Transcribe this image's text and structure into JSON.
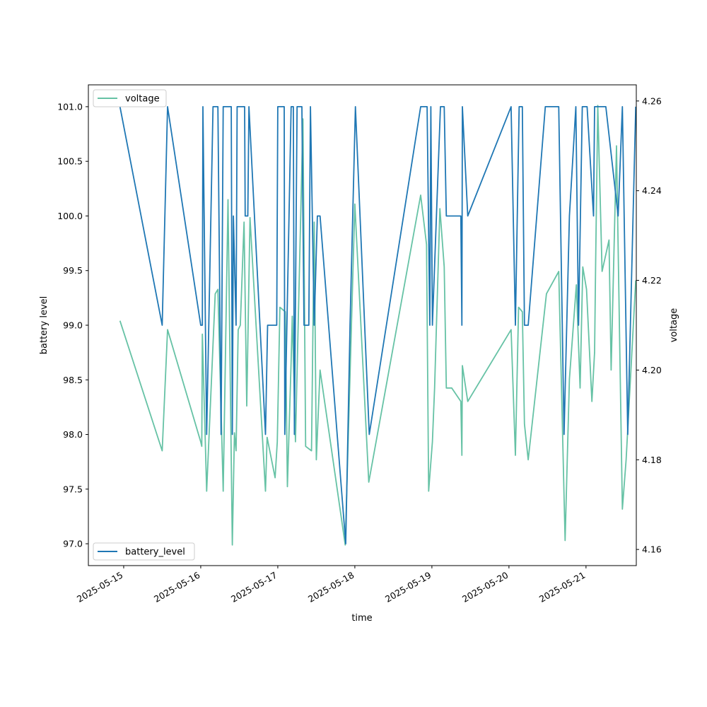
{
  "chart_data": {
    "type": "line",
    "title": "",
    "xlabel": "time",
    "ylabel_left": "battery level",
    "ylabel_right": "voltage",
    "x_ticks": [
      "2025-05-15",
      "2025-05-16",
      "2025-05-17",
      "2025-05-18",
      "2025-05-19",
      "2025-05-20",
      "2025-05-21"
    ],
    "xlim": [
      "2025-05-14T13:00",
      "2025-05-21T15:40"
    ],
    "y_left_ticks": [
      "97.0",
      "97.5",
      "98.0",
      "98.5",
      "99.0",
      "99.5",
      "100.0",
      "100.5",
      "101.0"
    ],
    "y_right_ticks": [
      "4.16",
      "4.18",
      "4.20",
      "4.22",
      "4.24",
      "4.26"
    ],
    "ylim_left": [
      96.8,
      101.2
    ],
    "ylim_right": [
      4.1564,
      4.2636
    ],
    "grid": false,
    "series": [
      {
        "name": "battery_level",
        "axis": "left",
        "color": "#1f77b4",
        "legend_position": "lower-left",
        "points": [
          [
            "2025-05-14T22:50",
            101
          ],
          [
            "2025-05-15T12:00",
            99
          ],
          [
            "2025-05-15T13:40",
            101
          ],
          [
            "2025-05-16T00:00",
            99
          ],
          [
            "2025-05-16T00:30",
            99
          ],
          [
            "2025-05-16T00:40",
            101
          ],
          [
            "2025-05-16T01:50",
            98
          ],
          [
            "2025-05-16T03:50",
            101
          ],
          [
            "2025-05-16T05:20",
            101
          ],
          [
            "2025-05-16T06:20",
            98
          ],
          [
            "2025-05-16T07:00",
            101
          ],
          [
            "2025-05-16T09:30",
            101
          ],
          [
            "2025-05-16T09:50",
            98
          ],
          [
            "2025-05-16T10:10",
            100
          ],
          [
            "2025-05-16T11:00",
            99
          ],
          [
            "2025-05-16T11:20",
            101
          ],
          [
            "2025-05-16T13:40",
            101
          ],
          [
            "2025-05-16T13:50",
            100
          ],
          [
            "2025-05-16T14:40",
            100
          ],
          [
            "2025-05-16T15:00",
            101
          ],
          [
            "2025-05-16T20:10",
            98
          ],
          [
            "2025-05-16T20:50",
            99
          ],
          [
            "2025-05-16T23:40",
            99
          ],
          [
            "2025-05-17T00:00",
            101
          ],
          [
            "2025-05-17T02:00",
            101
          ],
          [
            "2025-05-17T02:10",
            98
          ],
          [
            "2025-05-17T04:10",
            101
          ],
          [
            "2025-05-17T04:50",
            101
          ],
          [
            "2025-05-17T05:10",
            98
          ],
          [
            "2025-05-17T06:00",
            101
          ],
          [
            "2025-05-17T07:30",
            101
          ],
          [
            "2025-05-17T08:10",
            99
          ],
          [
            "2025-05-17T09:40",
            99
          ],
          [
            "2025-05-17T10:10",
            101
          ],
          [
            "2025-05-17T11:20",
            99
          ],
          [
            "2025-05-17T12:20",
            100
          ],
          [
            "2025-05-17T13:10",
            100
          ],
          [
            "2025-05-17T21:10",
            97
          ],
          [
            "2025-05-17T22:30",
            99
          ],
          [
            "2025-05-18T00:10",
            101
          ],
          [
            "2025-05-18T04:30",
            98
          ],
          [
            "2025-05-18T20:30",
            101
          ],
          [
            "2025-05-18T22:30",
            101
          ],
          [
            "2025-05-18T23:20",
            99
          ],
          [
            "2025-05-18T23:40",
            101
          ],
          [
            "2025-05-19T00:10",
            99
          ],
          [
            "2025-05-19T02:40",
            101
          ],
          [
            "2025-05-19T03:50",
            101
          ],
          [
            "2025-05-19T04:30",
            100
          ],
          [
            "2025-05-19T09:00",
            100
          ],
          [
            "2025-05-19T09:20",
            99
          ],
          [
            "2025-05-19T09:30",
            101
          ],
          [
            "2025-05-19T11:10",
            100
          ],
          [
            "2025-05-20T00:40",
            101
          ],
          [
            "2025-05-20T02:00",
            99
          ],
          [
            "2025-05-20T03:10",
            101
          ],
          [
            "2025-05-20T04:10",
            101
          ],
          [
            "2025-05-20T04:50",
            99
          ],
          [
            "2025-05-20T06:00",
            99
          ],
          [
            "2025-05-20T11:20",
            101
          ],
          [
            "2025-05-20T15:30",
            101
          ],
          [
            "2025-05-20T17:10",
            98
          ],
          [
            "2025-05-20T18:50",
            100
          ],
          [
            "2025-05-20T20:50",
            101
          ],
          [
            "2025-05-20T21:40",
            99
          ],
          [
            "2025-05-20T22:50",
            101
          ],
          [
            "2025-05-21T00:20",
            101
          ],
          [
            "2025-05-21T02:20",
            100
          ],
          [
            "2025-05-21T02:40",
            101
          ],
          [
            "2025-05-21T06:10",
            101
          ],
          [
            "2025-05-21T10:00",
            100
          ],
          [
            "2025-05-21T11:20",
            101
          ],
          [
            "2025-05-21T13:00",
            98
          ],
          [
            "2025-05-21T15:30",
            101
          ]
        ]
      },
      {
        "name": "voltage",
        "axis": "right",
        "color": "#66c2a5",
        "legend_position": "upper-left",
        "points": [
          [
            "2025-05-14T22:50",
            4.211
          ],
          [
            "2025-05-15T12:00",
            4.182
          ],
          [
            "2025-05-15T13:40",
            4.209
          ],
          [
            "2025-05-16T00:00",
            4.184
          ],
          [
            "2025-05-16T00:20",
            4.183
          ],
          [
            "2025-05-16T00:30",
            4.208
          ],
          [
            "2025-05-16T01:50",
            4.173
          ],
          [
            "2025-05-16T04:30",
            4.217
          ],
          [
            "2025-05-16T05:20",
            4.218
          ],
          [
            "2025-05-16T07:00",
            4.173
          ],
          [
            "2025-05-16T08:30",
            4.238
          ],
          [
            "2025-05-16T09:50",
            4.161
          ],
          [
            "2025-05-16T10:30",
            4.186
          ],
          [
            "2025-05-16T11:00",
            4.182
          ],
          [
            "2025-05-16T11:40",
            4.209
          ],
          [
            "2025-05-16T12:20",
            4.21
          ],
          [
            "2025-05-16T13:30",
            4.233
          ],
          [
            "2025-05-16T14:20",
            4.192
          ],
          [
            "2025-05-16T15:20",
            4.234
          ],
          [
            "2025-05-16T20:10",
            4.173
          ],
          [
            "2025-05-16T20:40",
            4.185
          ],
          [
            "2025-05-16T23:10",
            4.176
          ],
          [
            "2025-05-16T23:50",
            4.184
          ],
          [
            "2025-05-17T00:40",
            4.214
          ],
          [
            "2025-05-17T02:20",
            4.213
          ],
          [
            "2025-05-17T03:00",
            4.174
          ],
          [
            "2025-05-17T04:10",
            4.202
          ],
          [
            "2025-05-17T04:30",
            4.212
          ],
          [
            "2025-05-17T05:30",
            4.184
          ],
          [
            "2025-05-17T07:50",
            4.256
          ],
          [
            "2025-05-17T08:40",
            4.183
          ],
          [
            "2025-05-17T10:30",
            4.182
          ],
          [
            "2025-05-17T11:20",
            4.233
          ],
          [
            "2025-05-17T12:00",
            4.18
          ],
          [
            "2025-05-17T13:10",
            4.2
          ],
          [
            "2025-05-17T21:00",
            4.161
          ],
          [
            "2025-05-18T00:00",
            4.237
          ],
          [
            "2025-05-18T04:20",
            4.175
          ],
          [
            "2025-05-18T20:30",
            4.239
          ],
          [
            "2025-05-18T22:20",
            4.228
          ],
          [
            "2025-05-18T23:00",
            4.173
          ],
          [
            "2025-05-19T00:10",
            4.184
          ],
          [
            "2025-05-19T00:50",
            4.196
          ],
          [
            "2025-05-19T02:30",
            4.236
          ],
          [
            "2025-05-19T03:50",
            4.223
          ],
          [
            "2025-05-19T04:30",
            4.196
          ],
          [
            "2025-05-19T06:10",
            4.196
          ],
          [
            "2025-05-19T09:00",
            4.193
          ],
          [
            "2025-05-19T09:20",
            4.181
          ],
          [
            "2025-05-19T09:30",
            4.201
          ],
          [
            "2025-05-19T11:10",
            4.193
          ],
          [
            "2025-05-20T00:40",
            4.209
          ],
          [
            "2025-05-20T02:00",
            4.181
          ],
          [
            "2025-05-20T03:00",
            4.214
          ],
          [
            "2025-05-20T04:10",
            4.213
          ],
          [
            "2025-05-20T04:50",
            4.188
          ],
          [
            "2025-05-20T06:00",
            4.18
          ],
          [
            "2025-05-20T11:40",
            4.217
          ],
          [
            "2025-05-20T15:30",
            4.222
          ],
          [
            "2025-05-20T17:30",
            4.162
          ],
          [
            "2025-05-20T18:50",
            4.198
          ],
          [
            "2025-05-20T21:00",
            4.219
          ],
          [
            "2025-05-20T22:10",
            4.196
          ],
          [
            "2025-05-20T23:00",
            4.223
          ],
          [
            "2025-05-21T00:10",
            4.218
          ],
          [
            "2025-05-21T01:50",
            4.193
          ],
          [
            "2025-05-21T02:40",
            4.204
          ],
          [
            "2025-05-21T03:00",
            4.224
          ],
          [
            "2025-05-21T03:40",
            4.259
          ],
          [
            "2025-05-21T05:00",
            4.222
          ],
          [
            "2025-05-21T07:10",
            4.229
          ],
          [
            "2025-05-21T07:50",
            4.2
          ],
          [
            "2025-05-21T09:30",
            4.25
          ],
          [
            "2025-05-21T11:20",
            4.169
          ],
          [
            "2025-05-21T12:30",
            4.18
          ],
          [
            "2025-05-21T15:30",
            4.22
          ]
        ]
      }
    ]
  }
}
